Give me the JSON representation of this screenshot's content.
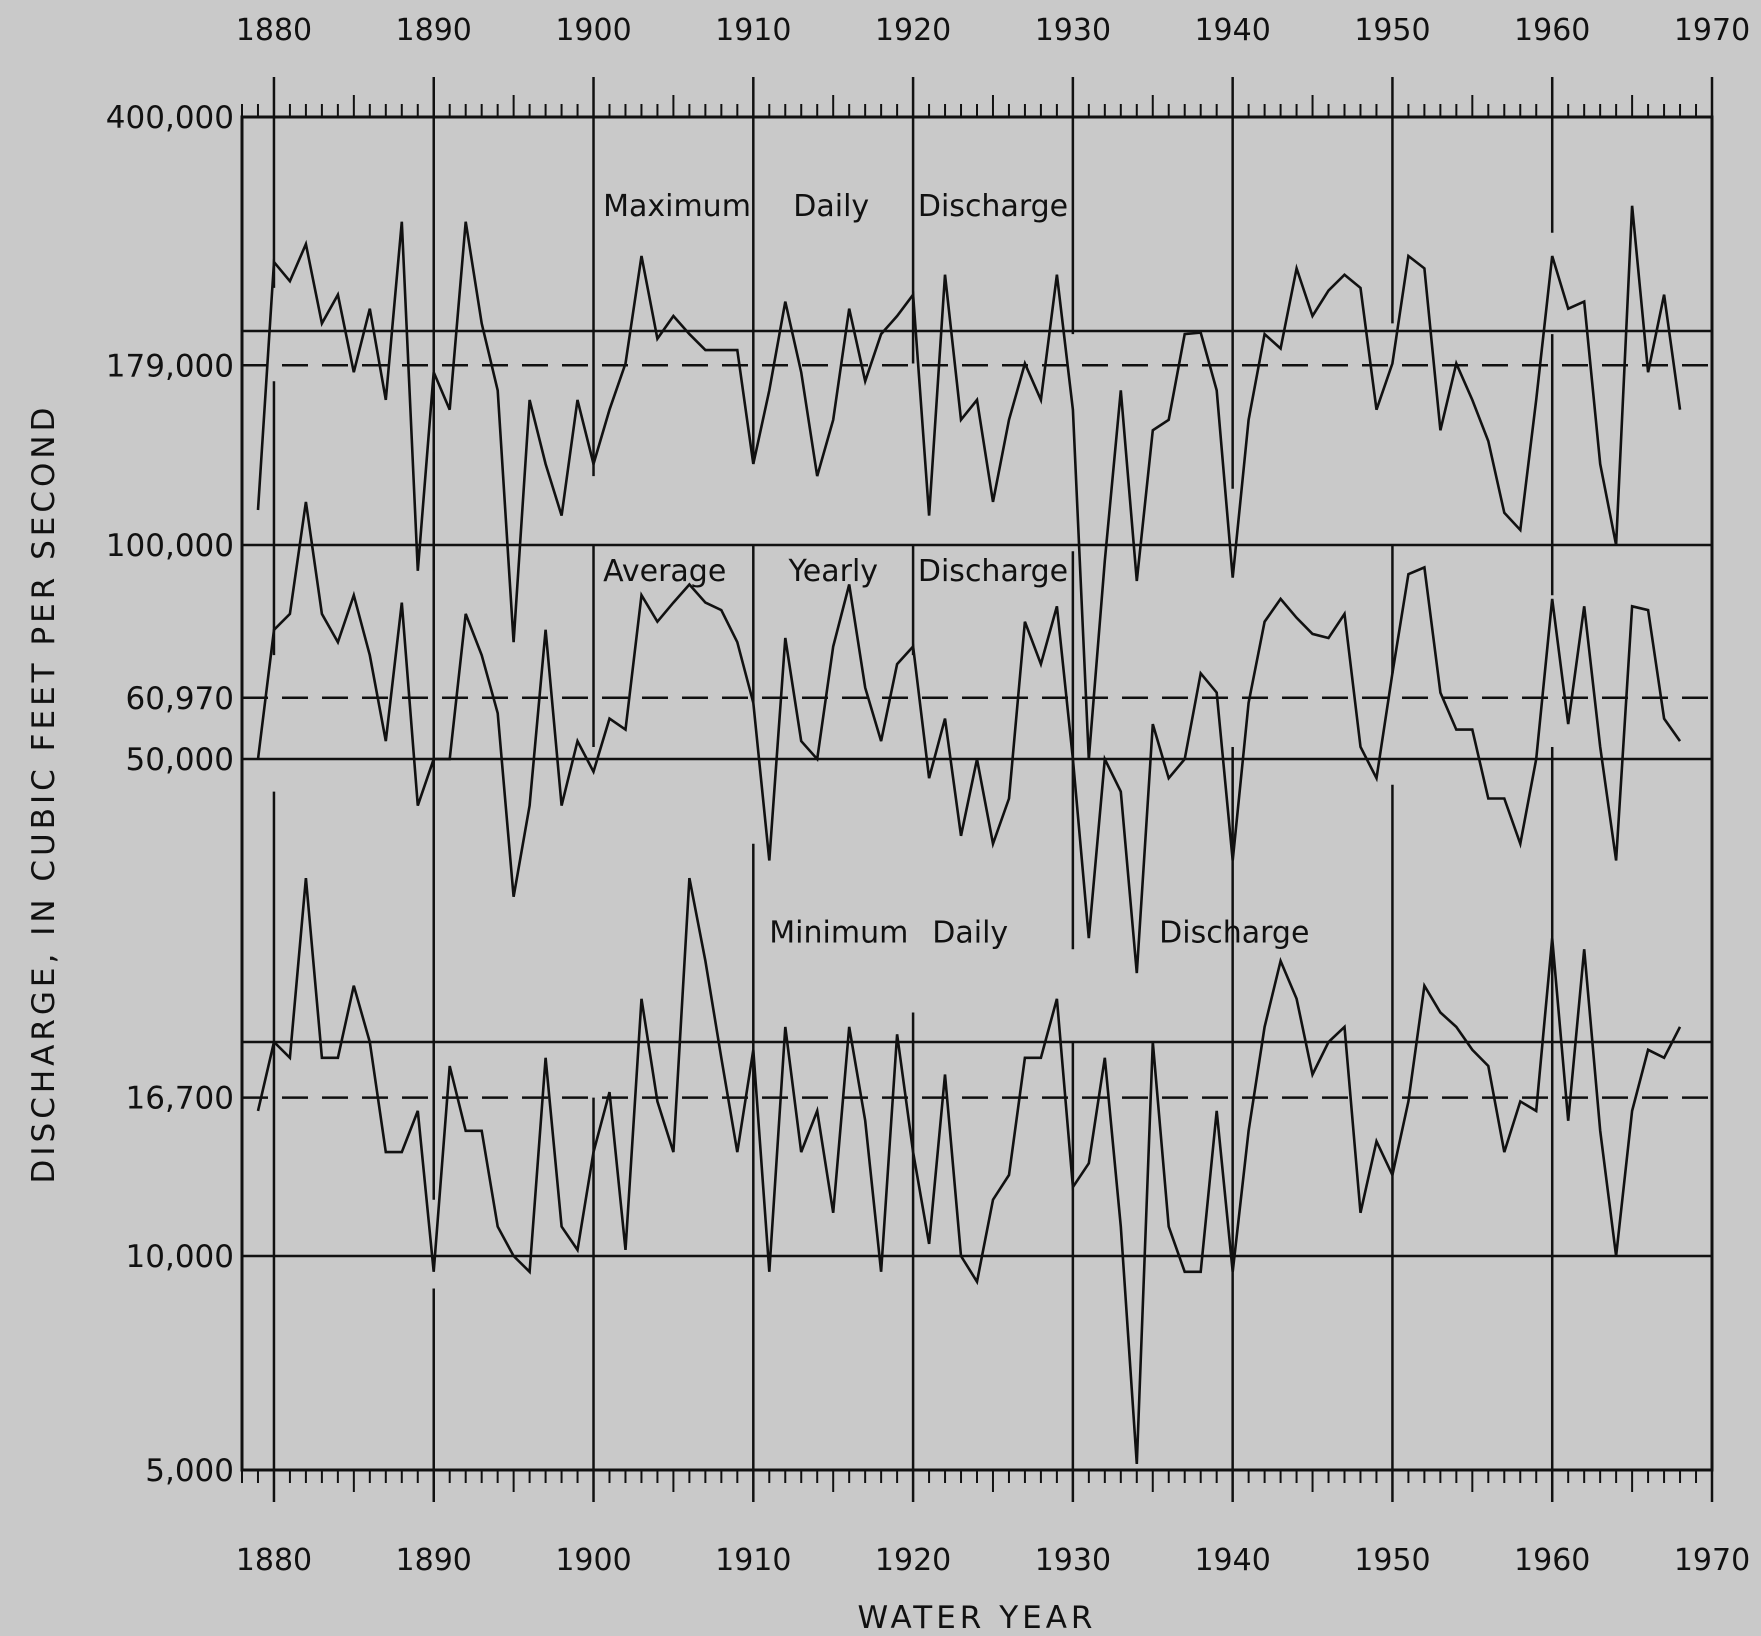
{
  "chart_data": {
    "type": "line",
    "title": "",
    "xlabel": "WATER YEAR",
    "ylabel": "DISCHARGE, IN CUBIC FEET PER SECOND",
    "x_range": [
      1878,
      1970
    ],
    "y_range": [
      5000,
      400000
    ],
    "y_scale": "log",
    "grid": false,
    "x_ticks": [
      1880,
      1890,
      1900,
      1910,
      1920,
      1930,
      1940,
      1950,
      1960,
      1970
    ],
    "x_tick_labels": [
      "1880",
      "1890",
      "1900",
      "1910",
      "1920",
      "1930",
      "1940",
      "1950",
      "1960",
      "1970"
    ],
    "y_ticks": [
      {
        "value": 400000,
        "label": "400,000"
      },
      {
        "value": 179000,
        "label": "179,000"
      },
      {
        "value": 100000,
        "label": "100,000"
      },
      {
        "value": 60970,
        "label": "60,970"
      },
      {
        "value": 50000,
        "label": "50,000"
      },
      {
        "value": 16700,
        "label": "16,700"
      },
      {
        "value": 10000,
        "label": "10,000"
      },
      {
        "value": 5000,
        "label": "5,000"
      }
    ],
    "reference_lines": [
      {
        "value": 200000,
        "style": "solid"
      },
      {
        "value": 179000,
        "style": "dashed"
      },
      {
        "value": 100000,
        "style": "solid"
      },
      {
        "value": 60970,
        "style": "dashed"
      },
      {
        "value": 50000,
        "style": "solid"
      },
      {
        "value": 20000,
        "style": "solid"
      },
      {
        "value": 16700,
        "style": "dashed"
      },
      {
        "value": 10000,
        "style": "solid"
      }
    ],
    "series": [
      {
        "label_words": [
          "Maximum",
          "Daily",
          "Discharge"
        ],
        "x": [
          1879,
          1880,
          1881,
          1882,
          1883,
          1884,
          1885,
          1886,
          1887,
          1888,
          1889,
          1890,
          1891,
          1892,
          1893,
          1894,
          1895,
          1896,
          1897,
          1898,
          1899,
          1900,
          1901,
          1902,
          1903,
          1904,
          1905,
          1906,
          1907,
          1908,
          1909,
          1910,
          1911,
          1912,
          1913,
          1914,
          1915,
          1916,
          1917,
          1918,
          1919,
          1920,
          1921,
          1922,
          1923,
          1924,
          1925,
          1926,
          1927,
          1928,
          1929,
          1930,
          1931,
          1932,
          1933,
          1934,
          1935,
          1936,
          1937,
          1938,
          1939,
          1940,
          1941,
          1942,
          1943,
          1944,
          1945,
          1946,
          1947,
          1948,
          1949,
          1950,
          1951,
          1952,
          1953,
          1954,
          1955,
          1956,
          1957,
          1958,
          1959,
          1960,
          1961,
          1962,
          1963,
          1964,
          1965,
          1966,
          1967,
          1968
        ],
        "values": [
          112000,
          250000,
          235000,
          265000,
          205000,
          225000,
          175000,
          215000,
          160000,
          285000,
          92000,
          175000,
          155000,
          285000,
          205000,
          165000,
          73000,
          160000,
          130000,
          110000,
          160000,
          130000,
          155000,
          180000,
          255000,
          195000,
          210000,
          198000,
          188000,
          188000,
          188000,
          130000,
          165000,
          220000,
          175000,
          125000,
          150000,
          215000,
          170000,
          198000,
          210000,
          225000,
          110000,
          240000,
          150000,
          160000,
          115000,
          150000,
          180000,
          160000,
          240000,
          155000,
          50000,
          95000,
          165000,
          89000,
          145000,
          150000,
          198000,
          199000,
          165000,
          90000,
          150000,
          198000,
          189000,
          245000,
          210000,
          228000,
          240000,
          230000,
          155000,
          180000,
          255000,
          245000,
          145000,
          180000,
          160000,
          140000,
          111000,
          105000,
          160000,
          255000,
          215000,
          220000,
          130000,
          100000,
          300000,
          175000,
          225000,
          155000
        ]
      },
      {
        "label_words": [
          "Average",
          "Yearly",
          "Discharge"
        ],
        "x": [
          1879,
          1880,
          1881,
          1882,
          1883,
          1884,
          1885,
          1886,
          1887,
          1888,
          1889,
          1890,
          1891,
          1892,
          1893,
          1894,
          1895,
          1896,
          1897,
          1898,
          1899,
          1900,
          1901,
          1902,
          1903,
          1904,
          1905,
          1906,
          1907,
          1908,
          1909,
          1910,
          1911,
          1912,
          1913,
          1914,
          1915,
          1916,
          1917,
          1918,
          1919,
          1920,
          1921,
          1922,
          1923,
          1924,
          1925,
          1926,
          1927,
          1928,
          1929,
          1930,
          1931,
          1932,
          1933,
          1934,
          1935,
          1936,
          1937,
          1938,
          1939,
          1940,
          1941,
          1942,
          1943,
          1944,
          1945,
          1946,
          1947,
          1948,
          1949,
          1950,
          1951,
          1952,
          1953,
          1954,
          1955,
          1956,
          1957,
          1958,
          1959,
          1960,
          1961,
          1962,
          1963,
          1964,
          1965,
          1966,
          1967,
          1968
        ],
        "values": [
          50000,
          76000,
          80000,
          115000,
          80000,
          73000,
          85000,
          70000,
          53000,
          83000,
          43000,
          50000,
          50000,
          80000,
          70000,
          58000,
          32000,
          43000,
          76000,
          43000,
          53000,
          48000,
          57000,
          55000,
          85000,
          78000,
          83000,
          88000,
          83000,
          81000,
          73000,
          60000,
          36000,
          74000,
          53000,
          50000,
          72000,
          88000,
          63000,
          53000,
          68000,
          72000,
          47000,
          57000,
          39000,
          50000,
          38000,
          44000,
          78000,
          68000,
          82000,
          50000,
          28000,
          50000,
          45000,
          25000,
          56000,
          47000,
          50000,
          66000,
          62000,
          36000,
          60000,
          78000,
          84000,
          79000,
          75000,
          74000,
          80000,
          52000,
          47000,
          66000,
          91000,
          93000,
          62000,
          55000,
          55000,
          44000,
          44000,
          38000,
          50000,
          84000,
          56000,
          82000,
          52000,
          36000,
          82000,
          81000,
          57000,
          53000
        ]
      },
      {
        "label_words": [
          "Minimum",
          "Daily",
          "Discharge"
        ],
        "x": [
          1879,
          1880,
          1881,
          1882,
          1883,
          1884,
          1885,
          1886,
          1887,
          1888,
          1889,
          1890,
          1891,
          1892,
          1893,
          1894,
          1895,
          1896,
          1897,
          1898,
          1899,
          1900,
          1901,
          1902,
          1903,
          1904,
          1905,
          1906,
          1907,
          1908,
          1909,
          1910,
          1911,
          1912,
          1913,
          1914,
          1915,
          1916,
          1917,
          1918,
          1919,
          1920,
          1921,
          1922,
          1923,
          1924,
          1925,
          1926,
          1927,
          1928,
          1929,
          1930,
          1931,
          1932,
          1933,
          1934,
          1935,
          1936,
          1937,
          1938,
          1939,
          1940,
          1941,
          1942,
          1943,
          1944,
          1945,
          1946,
          1947,
          1948,
          1949,
          1950,
          1951,
          1952,
          1953,
          1954,
          1955,
          1956,
          1957,
          1958,
          1959,
          1960,
          1961,
          1962,
          1963,
          1964,
          1965,
          1966,
          1967,
          1968
        ],
        "values": [
          16000,
          20000,
          19000,
          34000,
          19000,
          19000,
          24000,
          20000,
          14000,
          14000,
          16000,
          9500,
          18500,
          15000,
          15000,
          11000,
          10000,
          9500,
          19000,
          11000,
          10200,
          14000,
          17000,
          10200,
          23000,
          16500,
          14000,
          34000,
          26000,
          19000,
          14000,
          19500,
          9500,
          21000,
          14000,
          16000,
          11500,
          21000,
          15500,
          9500,
          20500,
          14000,
          10400,
          18000,
          10000,
          9200,
          12000,
          13000,
          19000,
          19000,
          23000,
          12500,
          13500,
          19000,
          11000,
          5100,
          20000,
          11000,
          9500,
          9500,
          16000,
          9500,
          15000,
          21000,
          26000,
          23000,
          18000,
          20000,
          21000,
          11500,
          14500,
          13000,
          16500,
          24000,
          22000,
          21000,
          19500,
          18500,
          14000,
          16500,
          16000,
          28000,
          15500,
          27000,
          15000,
          10000,
          16000,
          19500,
          19000,
          21000
        ]
      }
    ],
    "decade_line_segments": [
      [
        1880,
        [
          [
            400000,
            230000
          ],
          [
            170000,
            70000
          ],
          [
            45000,
            5000
          ]
        ]
      ],
      [
        1890,
        [
          [
            400000,
            92000
          ],
          [
            135000,
            12000
          ],
          [
            9000,
            5000
          ]
        ]
      ],
      [
        1900,
        [
          [
            400000,
            125000
          ],
          [
            100000,
            52000
          ],
          [
            16700,
            5000
          ]
        ]
      ],
      [
        1910,
        [
          [
            400000,
            130000
          ],
          [
            100000,
            60000
          ],
          [
            38000,
            5000
          ]
        ]
      ],
      [
        1920,
        [
          [
            400000,
            180000
          ],
          [
            100000,
            70000
          ],
          [
            22000,
            5000
          ]
        ]
      ],
      [
        1930,
        [
          [
            400000,
            198000
          ],
          [
            98000,
            27000
          ],
          [
            20000,
            5000
          ]
        ]
      ],
      [
        1940,
        [
          [
            400000,
            120000
          ],
          [
            52000,
            5000
          ]
        ]
      ],
      [
        1950,
        [
          [
            400000,
            205000
          ],
          [
            100000,
            66000
          ],
          [
            46000,
            5000
          ]
        ]
      ],
      [
        1960,
        [
          [
            400000,
            275000
          ],
          [
            198000,
            85000
          ],
          [
            52000,
            5000
          ]
        ]
      ],
      [
        1970,
        [
          [
            400000,
            5000
          ]
        ]
      ]
    ]
  }
}
